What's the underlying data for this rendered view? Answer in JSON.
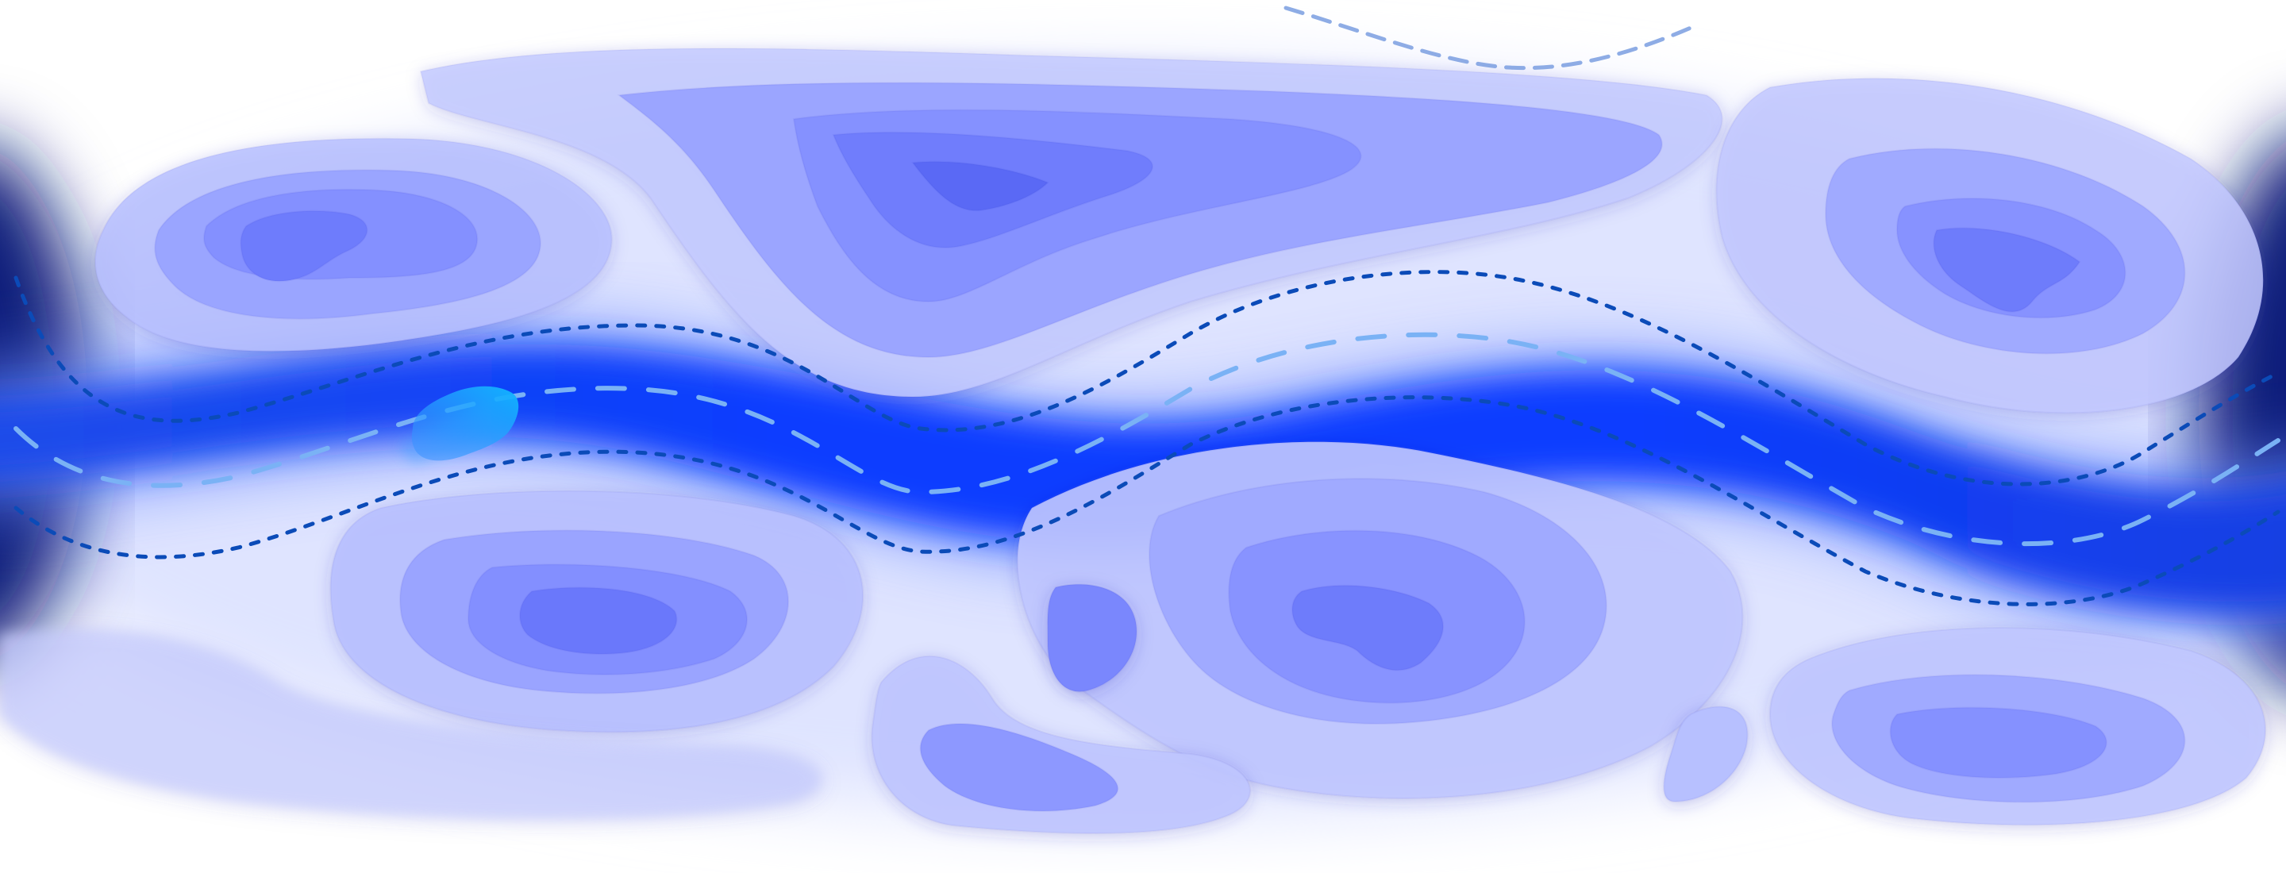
{
  "scene": {
    "subject": "topographic-river-illustration",
    "palette": {
      "background": "#ffffff",
      "river_core": "#0a3dff",
      "river_mid": "#2f6bff",
      "river_edge": "#b9cbff",
      "island_outer": "#c7ccff",
      "island_ring_2": "#9aa4ff",
      "island_ring_3": "#7f8cff",
      "island_ring_4": "#6a79fb",
      "island_core": "#5a69f5",
      "edge_shadow": "#0b1a7a",
      "bank_line": "#0b4bb8",
      "center_line": "#7ab2f5",
      "boat": "#10b4ff"
    },
    "elements": {
      "river": "river",
      "left_bank": "dashed-bank-line",
      "right_bank": "dashed-bank-line",
      "center_line": "dashed-center-line",
      "boat": "boat"
    }
  }
}
